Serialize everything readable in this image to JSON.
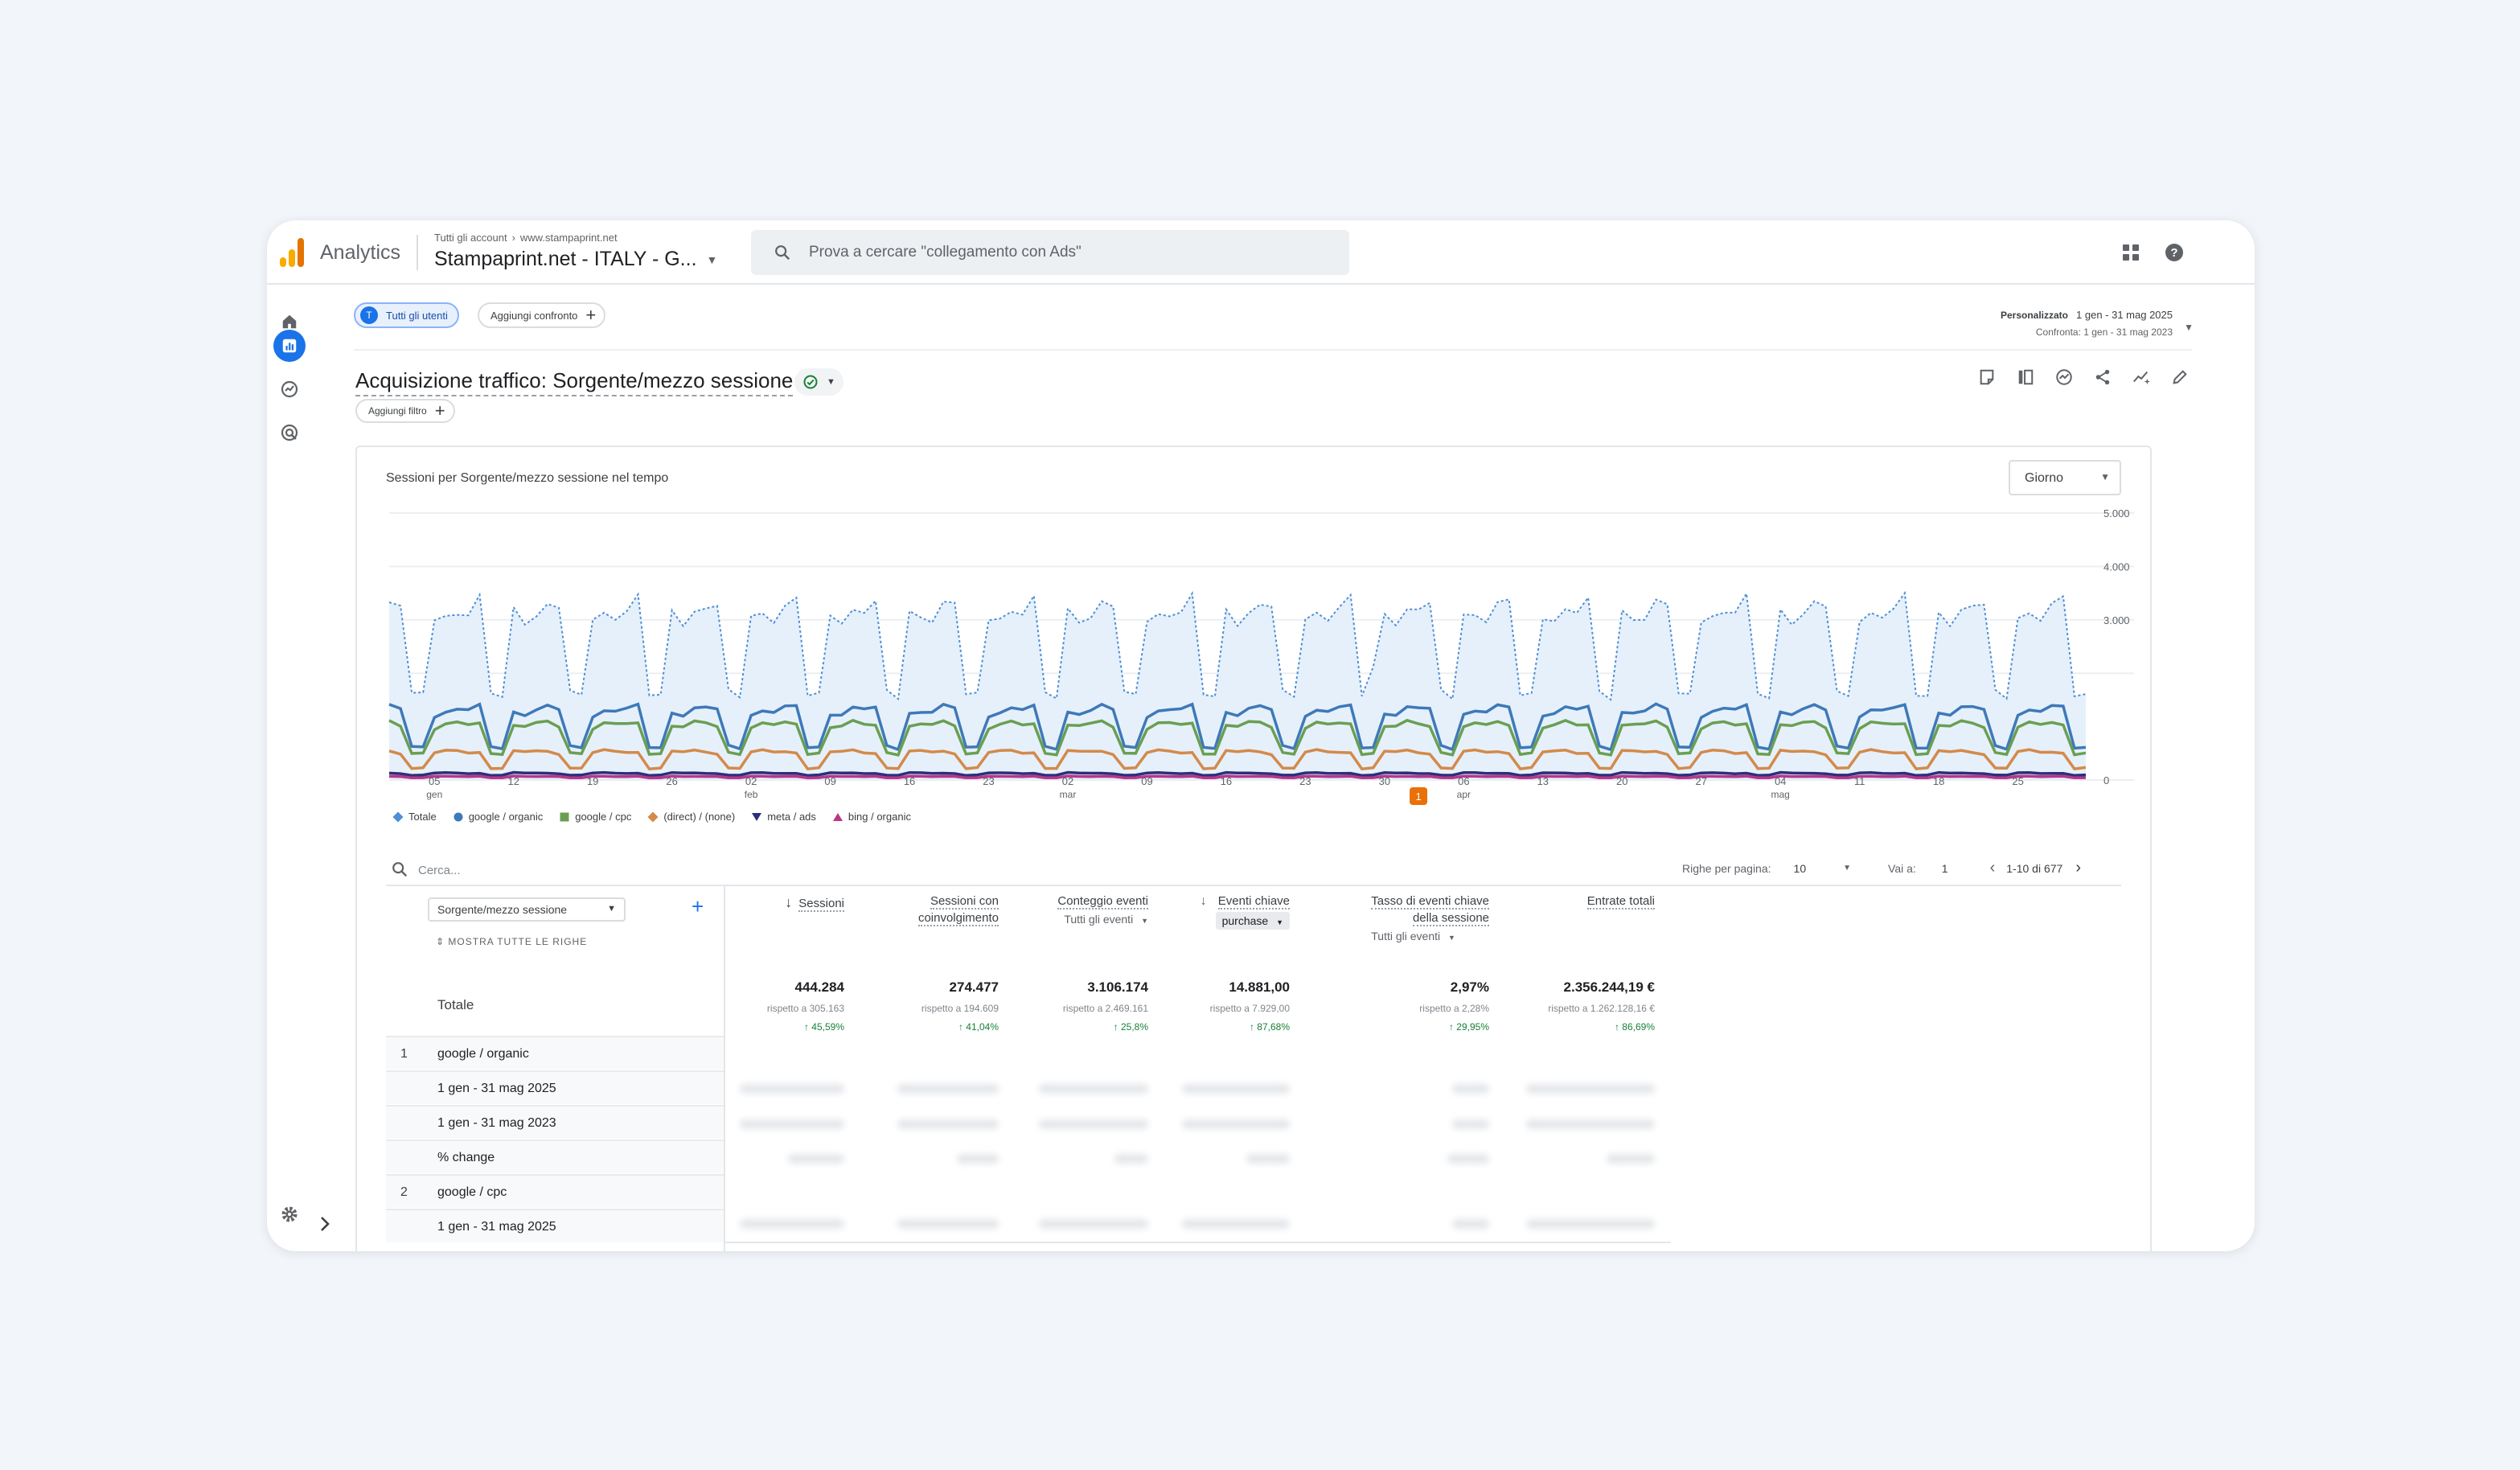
{
  "app": {
    "name": "Analytics",
    "breadcrumb": [
      "Tutti gli account",
      "www.stampaprint.net"
    ],
    "property": "Stampaprint.net - ITALY - G...",
    "search_placeholder": "Prova a cercare \"collegamento con Ads\""
  },
  "nav": {
    "items": [
      "home-icon",
      "reports-icon",
      "explore-icon",
      "advertising-icon"
    ],
    "active": "reports-icon"
  },
  "header": {
    "segment_chip": {
      "avatar": "T",
      "label": "Tutti gli utenti"
    },
    "compare_chip": "Aggiungi confronto",
    "date_mode": "Personalizzato",
    "date_range": "1 gen - 31 mag 2025",
    "date_compare": "Confronta: 1 gen - 31 mag 2023"
  },
  "report": {
    "title": "Acquisizione traffico: Sorgente/mezzo sessione",
    "add_filter": "Aggiungi filtro"
  },
  "chart_data": {
    "type": "line",
    "title": "Sessioni per Sorgente/mezzo sessione nel tempo",
    "granularity": "Giorno",
    "ylim": [
      0,
      5000
    ],
    "y_ticks": [
      "5.000",
      "4.000",
      "3.000",
      "0"
    ],
    "x_ticks": [
      {
        "d": "05",
        "m": "gen"
      },
      {
        "d": "12",
        "m": ""
      },
      {
        "d": "19",
        "m": ""
      },
      {
        "d": "26",
        "m": ""
      },
      {
        "d": "02",
        "m": "feb"
      },
      {
        "d": "09",
        "m": ""
      },
      {
        "d": "16",
        "m": ""
      },
      {
        "d": "23",
        "m": ""
      },
      {
        "d": "02",
        "m": "mar"
      },
      {
        "d": "09",
        "m": ""
      },
      {
        "d": "16",
        "m": ""
      },
      {
        "d": "23",
        "m": ""
      },
      {
        "d": "30",
        "m": ""
      },
      {
        "d": "06",
        "m": "apr"
      },
      {
        "d": "13",
        "m": ""
      },
      {
        "d": "20",
        "m": ""
      },
      {
        "d": "27",
        "m": ""
      },
      {
        "d": "04",
        "m": "mag"
      },
      {
        "d": "11",
        "m": ""
      },
      {
        "d": "18",
        "m": ""
      },
      {
        "d": "25",
        "m": ""
      }
    ],
    "series": [
      {
        "name": "Totale",
        "color": "#4e8fd6",
        "weekday": 3200,
        "weekend": 1550,
        "style": "area"
      },
      {
        "name": "google / organic",
        "color": "#3e79b8",
        "weekday": 1300,
        "weekend": 620
      },
      {
        "name": "google / cpc",
        "color": "#6a9f52",
        "weekday": 1020,
        "weekend": 520
      },
      {
        "name": "(direct) / (none)",
        "color": "#d38a4a",
        "weekday": 520,
        "weekend": 230
      },
      {
        "name": "meta / ads",
        "color": "#2b2f7a",
        "weekday": 130,
        "weekend": 90
      },
      {
        "name": "bing / organic",
        "color": "#b9368a",
        "weekday": 70,
        "weekend": 40
      }
    ],
    "annotation": "1"
  },
  "legend_icons": [
    "diamond",
    "circle",
    "square",
    "diamond",
    "triangle-down",
    "triangle-up"
  ],
  "table": {
    "search_placeholder": "Cerca...",
    "rows_per_page_label": "Righe per pagina:",
    "rows_per_page": "10",
    "goto_label": "Vai a:",
    "goto_value": "1",
    "pagination": "1-10 di 677",
    "dimension": "Sorgente/mezzo sessione",
    "show_all": "MOSTRA TUTTE LE RIGHE",
    "total_label": "Totale",
    "metrics": [
      {
        "h1": "Sessioni",
        "h2": "",
        "sub": "",
        "sorted": true,
        "total": "444.284",
        "compare": "rispetto a 305.163",
        "change": "↑ 45,59%"
      },
      {
        "h1": "Sessioni con",
        "h2": "coinvolgimento",
        "sub": "",
        "total": "274.477",
        "compare": "rispetto a 194.609",
        "change": "↑ 41,04%"
      },
      {
        "h1": "Conteggio eventi",
        "h2": "",
        "sub": "Tutti gli eventi",
        "total": "3.106.174",
        "compare": "rispetto a 2.469.161",
        "change": "↑ 25,8%"
      },
      {
        "h1": "Eventi chiave",
        "h2": "",
        "sub_chip": "purchase",
        "total": "14.881,00",
        "compare": "rispetto a 7.929,00",
        "change": "↑ 87,68%"
      },
      {
        "h1": "Tasso di eventi chiave",
        "h2": "della sessione",
        "sub": "Tutti gli eventi",
        "total": "2,97%",
        "compare": "rispetto a 2,28%",
        "change": "↑ 29,95%"
      },
      {
        "h1": "Entrate totali",
        "h2": "",
        "sub": "",
        "total": "2.356.244,19 €",
        "compare": "rispetto a 1.262.128,16 €",
        "change": "↑ 86,69%"
      }
    ],
    "rows": [
      {
        "num": "1",
        "label": "google / organic"
      },
      {
        "num": "",
        "label": "1 gen - 31 mag 2025"
      },
      {
        "num": "",
        "label": "1 gen - 31 mag 2023"
      },
      {
        "num": "",
        "label": "% change"
      },
      {
        "num": "2",
        "label": "google / cpc"
      },
      {
        "num": "",
        "label": "1 gen - 31 mag 2025"
      }
    ]
  }
}
